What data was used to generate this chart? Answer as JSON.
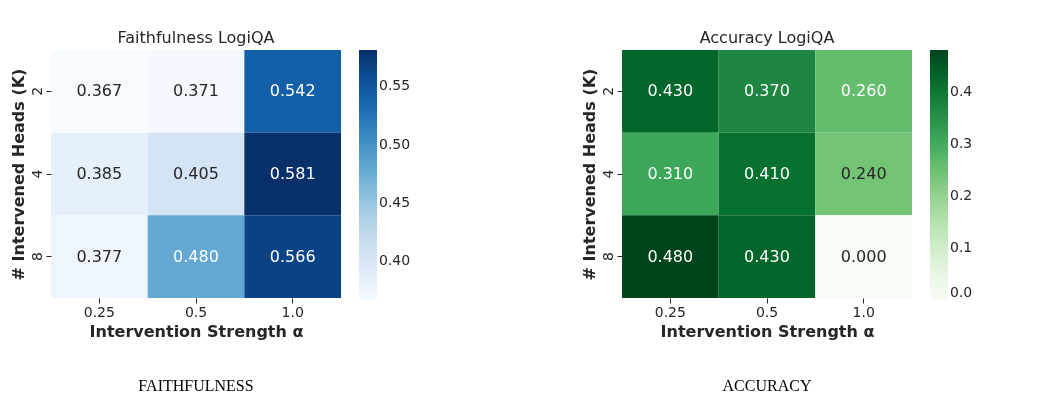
{
  "chart_data": [
    {
      "type": "heatmap",
      "title": "Faithfulness LogiQA",
      "xlabel": "Intervention Strength α",
      "ylabel": "# Intervened Heads (K)",
      "categories": [
        "0.25",
        "0.5",
        "1.0"
      ],
      "y_categories": [
        "2",
        "4",
        "8"
      ],
      "cells": [
        [
          0.367,
          0.371,
          0.542
        ],
        [
          0.385,
          0.405,
          0.581
        ],
        [
          0.377,
          0.48,
          0.566
        ]
      ],
      "cell_labels": [
        [
          "0.367",
          "0.371",
          "0.542"
        ],
        [
          "0.385",
          "0.405",
          "0.581"
        ],
        [
          "0.377",
          "0.480",
          "0.566"
        ]
      ],
      "clim": [
        0.367,
        0.581
      ],
      "cticks": [
        {
          "value": 0.4,
          "label": "0.40"
        },
        {
          "value": 0.45,
          "label": "0.45"
        },
        {
          "value": 0.5,
          "label": "0.50"
        },
        {
          "value": 0.55,
          "label": "0.55"
        }
      ],
      "colors": [
        "#f7fbff",
        "#deebf7",
        "#c6dbef",
        "#9ecae1",
        "#6baed6",
        "#4292c6",
        "#2171b5",
        "#08519c",
        "#08306b"
      ],
      "annotations": [
        "FAITHFULNESS"
      ]
    },
    {
      "type": "heatmap",
      "title": "Accuracy LogiQA",
      "xlabel": "Intervention Strength α",
      "ylabel": "# Intervened Heads (K)",
      "categories": [
        "0.25",
        "0.5",
        "1.0"
      ],
      "y_categories": [
        "2",
        "4",
        "8"
      ],
      "cells": [
        [
          0.43,
          0.37,
          0.26
        ],
        [
          0.31,
          0.41,
          0.24
        ],
        [
          0.48,
          0.43,
          0.0
        ]
      ],
      "cell_labels": [
        [
          "0.430",
          "0.370",
          "0.260"
        ],
        [
          "0.310",
          "0.410",
          "0.240"
        ],
        [
          "0.480",
          "0.430",
          "0.000"
        ]
      ],
      "clim": [
        0.0,
        0.48
      ],
      "cticks": [
        {
          "value": 0.0,
          "label": "0.0"
        },
        {
          "value": 0.1,
          "label": "0.1"
        },
        {
          "value": 0.2,
          "label": "0.2"
        },
        {
          "value": 0.3,
          "label": "0.3"
        },
        {
          "value": 0.4,
          "label": "0.4"
        }
      ],
      "colors": [
        "#f7fcf5",
        "#e5f5e0",
        "#c7e9c0",
        "#a1d99b",
        "#74c476",
        "#41ab5d",
        "#238b45",
        "#006d2c",
        "#00441b"
      ],
      "annotations": [
        "ACCURACY"
      ]
    }
  ]
}
